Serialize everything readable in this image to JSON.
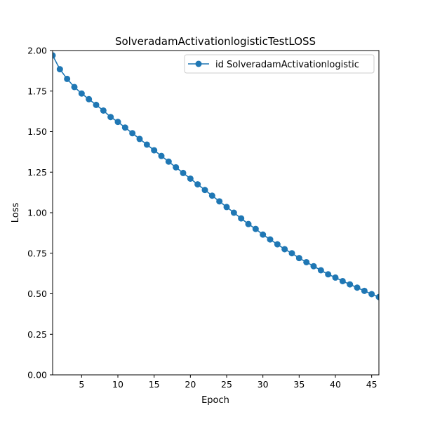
{
  "chart_data": {
    "type": "line",
    "title": "SolveradamActivationlogisticTestLOSS",
    "xlabel": "Epoch",
    "ylabel": "Loss",
    "xlim": [
      1,
      46
    ],
    "ylim": [
      0,
      2.0
    ],
    "x_ticks": [
      5,
      10,
      15,
      20,
      25,
      30,
      35,
      40,
      45
    ],
    "x_tick_labels": [
      "5",
      "10",
      "15",
      "20",
      "25",
      "30",
      "35",
      "40",
      "45"
    ],
    "y_ticks": [
      0,
      0.25,
      0.5,
      0.75,
      1.0,
      1.25,
      1.5,
      1.75,
      2.0
    ],
    "y_tick_labels": [
      "0.00",
      "0.25",
      "0.50",
      "0.75",
      "1.00",
      "1.25",
      "1.50",
      "1.75",
      "2.00"
    ],
    "grid": false,
    "legend_position": "top-right",
    "series": [
      {
        "name": "id SolveradamActivationlogistic",
        "color": "#1f77b4",
        "marker": "circle",
        "x": [
          1,
          2,
          3,
          4,
          5,
          6,
          7,
          8,
          9,
          10,
          11,
          12,
          13,
          14,
          15,
          16,
          17,
          18,
          19,
          20,
          21,
          22,
          23,
          24,
          25,
          26,
          27,
          28,
          29,
          30,
          31,
          32,
          33,
          34,
          35,
          36,
          37,
          38,
          39,
          40,
          41,
          42,
          43,
          44,
          45,
          46
        ],
        "y": [
          1.97,
          1.885,
          1.825,
          1.775,
          1.735,
          1.7,
          1.665,
          1.63,
          1.59,
          1.56,
          1.525,
          1.49,
          1.455,
          1.42,
          1.385,
          1.35,
          1.315,
          1.28,
          1.245,
          1.21,
          1.175,
          1.14,
          1.105,
          1.07,
          1.035,
          1.0,
          0.965,
          0.93,
          0.9,
          0.865,
          0.835,
          0.805,
          0.775,
          0.75,
          0.72,
          0.695,
          0.67,
          0.645,
          0.62,
          0.6,
          0.578,
          0.558,
          0.538,
          0.518,
          0.498,
          0.48
        ]
      }
    ]
  }
}
